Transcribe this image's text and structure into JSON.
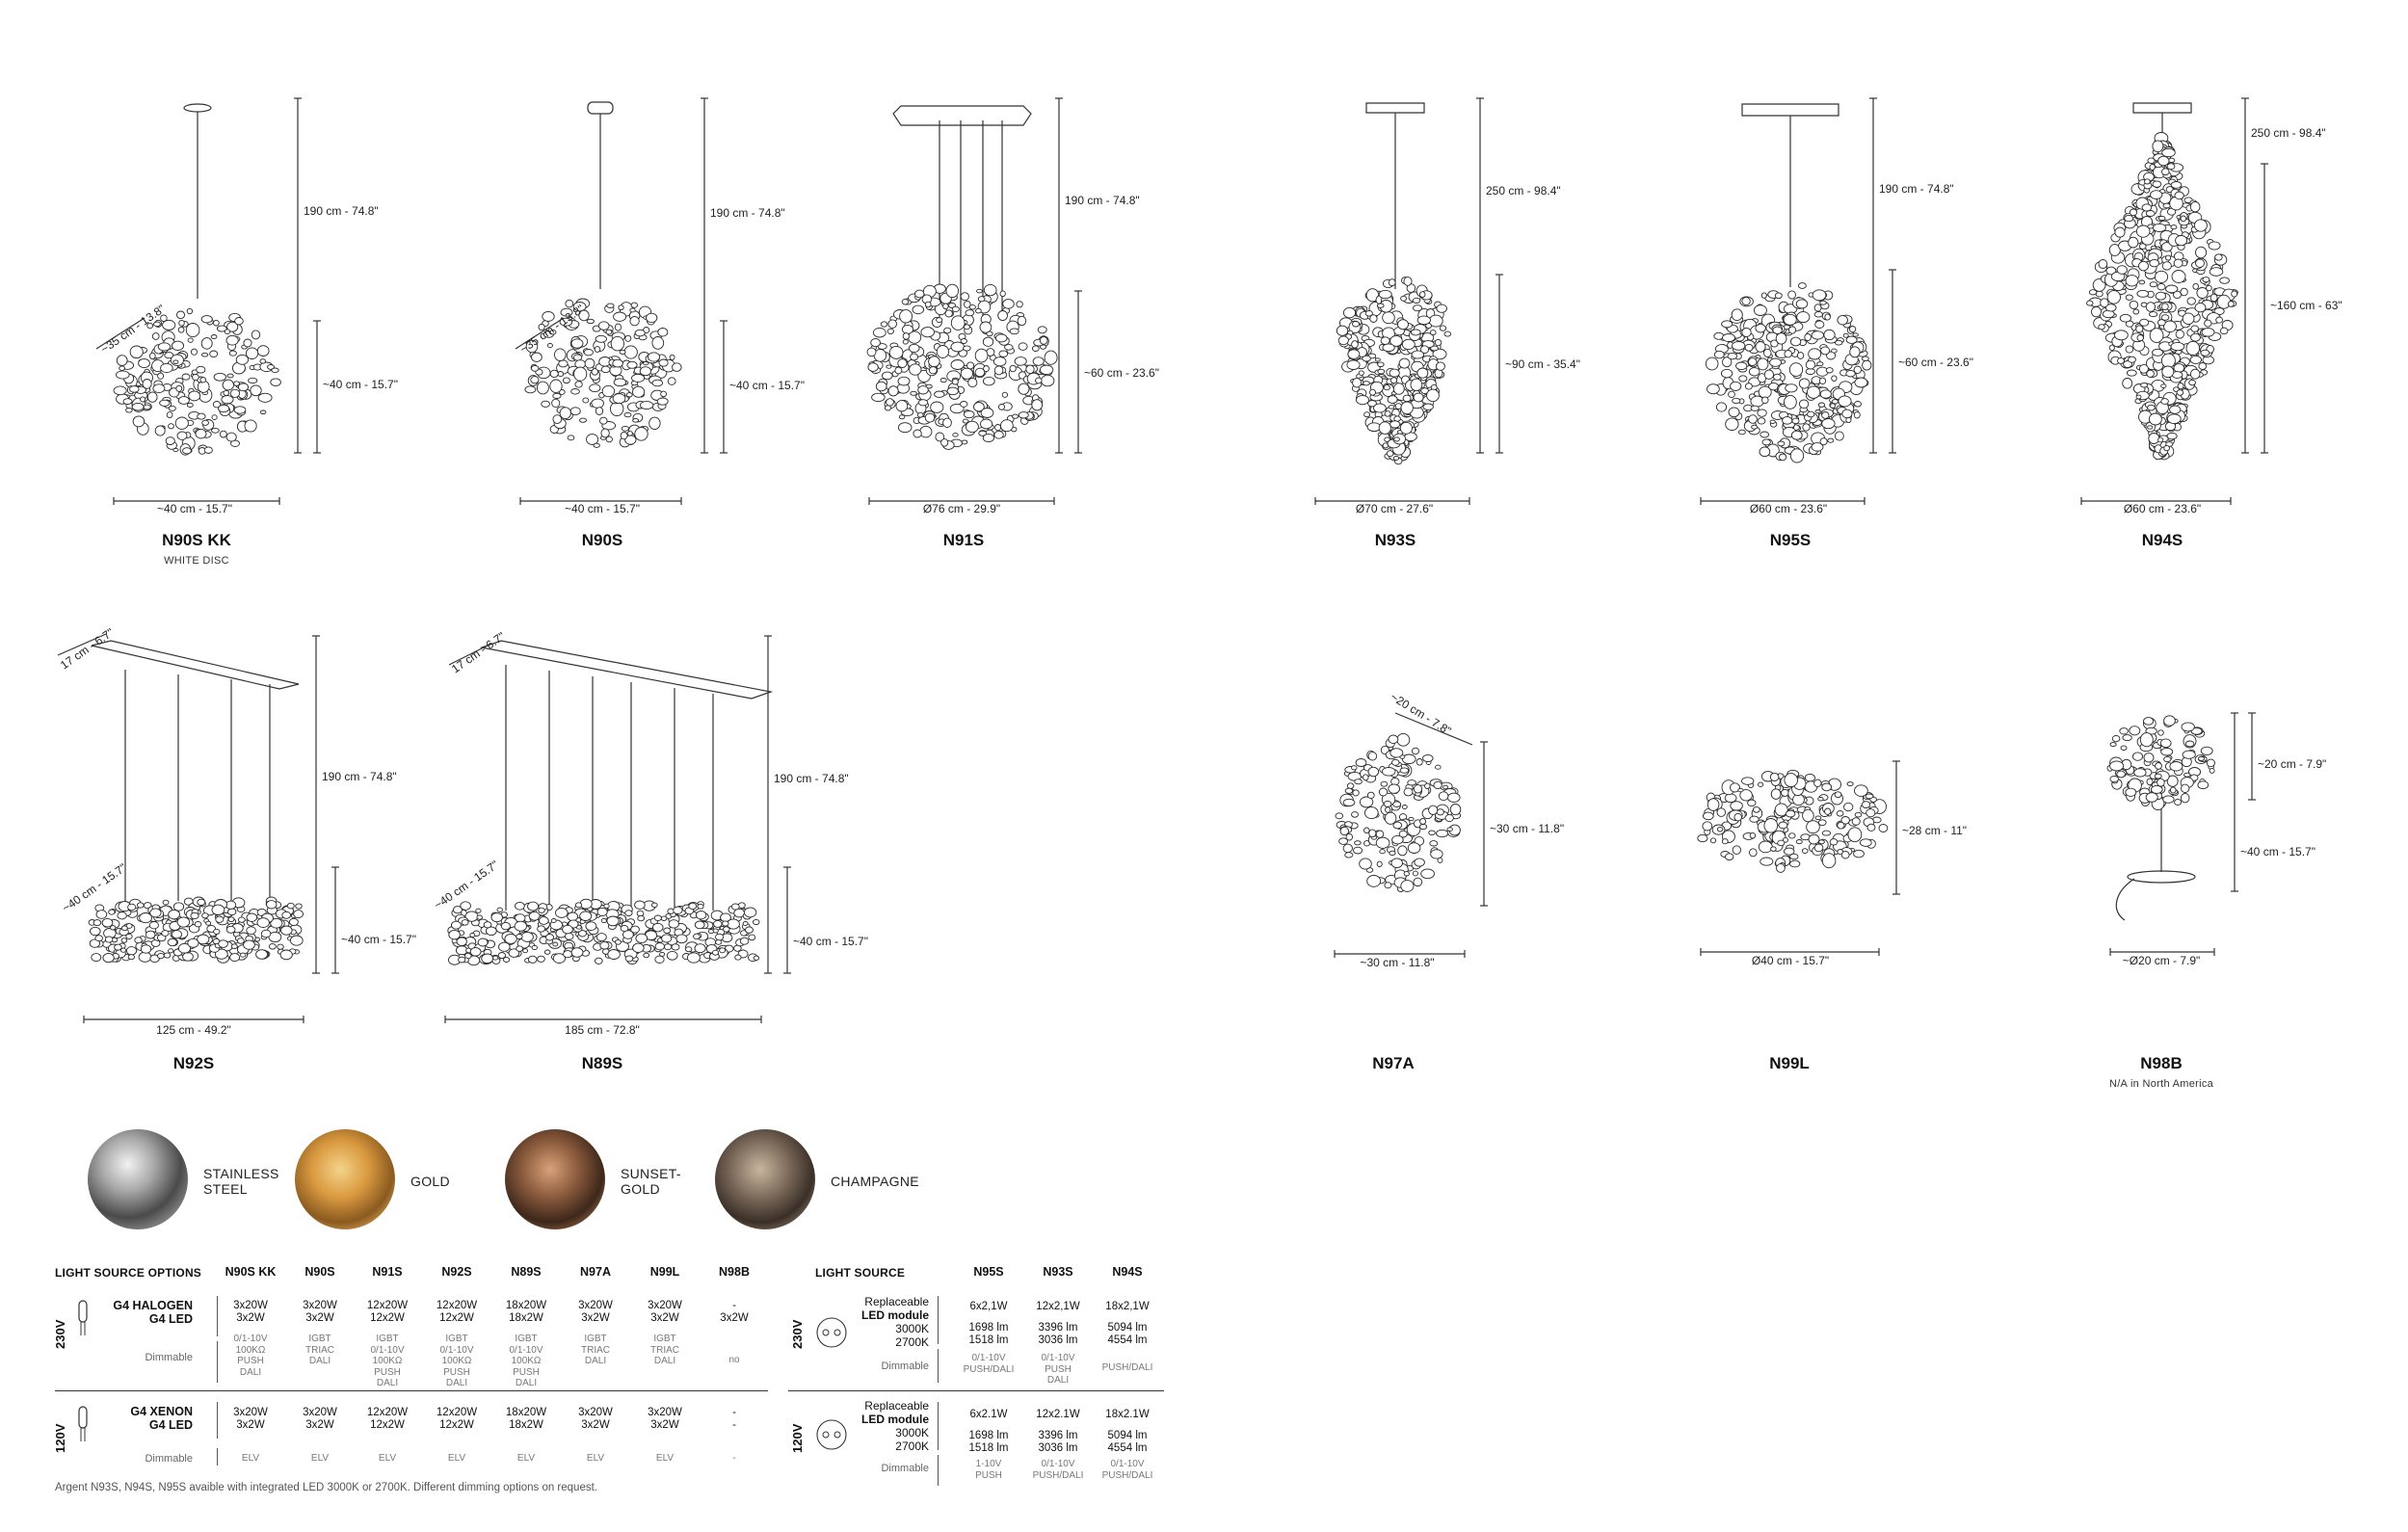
{
  "products": [
    {
      "id": "N90S KK",
      "sub": "WHITE DISC"
    },
    {
      "id": "N90S"
    },
    {
      "id": "N91S"
    },
    {
      "id": "N93S"
    },
    {
      "id": "N95S"
    },
    {
      "id": "N94S"
    },
    {
      "id": "N92S"
    },
    {
      "id": "N89S"
    },
    {
      "id": "N97A"
    },
    {
      "id": "N99L"
    },
    {
      "id": "N98B",
      "sub": "N/A in North America"
    }
  ],
  "dims": {
    "n90skk": {
      "h": "190 cm - 74.8\"",
      "h2": "~40 cm - 15.7\"",
      "w": "~40 cm - 15.7\"",
      "d": "~35 cm - 13.8\""
    },
    "n90s": {
      "h": "190 cm - 74.8\"",
      "h2": "~40 cm - 15.7\"",
      "w": "~40 cm - 15.7\"",
      "d": "~35 cm - 13.8\""
    },
    "n91s": {
      "h": "190 cm - 74.8\"",
      "h2": "~60 cm - 23.6\"",
      "w": "Ø76 cm - 29.9\""
    },
    "n93s": {
      "h": "250 cm - 98.4\"",
      "h2": "~90 cm - 35.4\"",
      "w": "Ø70 cm - 27.6\""
    },
    "n95s": {
      "h": "190 cm - 74.8\"",
      "h2": "~60 cm - 23.6\"",
      "w": "Ø60 cm - 23.6\""
    },
    "n94s": {
      "h": "250 cm - 98.4\"",
      "h2": "~160 cm - 63\"",
      "w": "Ø60 cm - 23.6\""
    },
    "n92s": {
      "h": "190 cm - 74.8\"",
      "h2": "~40 cm - 15.7\"",
      "w": "125 cm - 49.2\"",
      "d": "~40 cm - 15.7\"",
      "d2": "17 cm - 6.7\""
    },
    "n89s": {
      "h": "190 cm - 74.8\"",
      "h2": "~40 cm - 15.7\"",
      "w": "185 cm - 72.8\"",
      "d": "~40 cm - 15.7\"",
      "d2": "17 cm - 6.7\""
    },
    "n97a": {
      "h": "~30 cm - 11.8\"",
      "w": "~30 cm - 11.8\"",
      "d": "~20 cm - 7.8\""
    },
    "n99l": {
      "h": "~28 cm - 11\"",
      "w": "Ø40 cm - 15.7\""
    },
    "n98b": {
      "h": "~20 cm - 7.9\"",
      "h2": "~40 cm - 15.7\"",
      "w": "~Ø20 cm - 7.9\""
    }
  },
  "finishes": [
    {
      "label1": "STAINLESS",
      "label2": "STEEL",
      "color": "#8a8a8a"
    },
    {
      "label1": "GOLD",
      "label2": "",
      "color": "#c98a3a"
    },
    {
      "label1": "SUNSET-",
      "label2": "GOLD",
      "color": "#6e4a33"
    },
    {
      "label1": "CHAMPAGNE",
      "label2": "",
      "color": "#5a4a3e"
    }
  ],
  "table1": {
    "title": "LIGHT SOURCE OPTIONS",
    "columns": [
      "N90S KK",
      "N90S",
      "N91S",
      "N92S",
      "N89S",
      "N97A",
      "N99L",
      "N98B"
    ],
    "v230": "230V",
    "v120": "120V",
    "row230_label1": "G4 HALOGEN",
    "row230_label2": "G4 LED",
    "row230_dim": "Dimmable",
    "row230_values": [
      [
        "3x20W",
        "3x2W"
      ],
      [
        "3x20W",
        "3x2W"
      ],
      [
        "12x20W",
        "12x2W"
      ],
      [
        "12x20W",
        "12x2W"
      ],
      [
        "18x20W",
        "18x2W"
      ],
      [
        "3x20W",
        "3x2W"
      ],
      [
        "3x20W",
        "3x2W"
      ],
      [
        "-",
        "3x2W"
      ]
    ],
    "row230_dimming": [
      [
        "0/1-10V",
        "100KΩ",
        "PUSH",
        "DALI"
      ],
      [
        "IGBT",
        "TRIAC",
        "DALI"
      ],
      [
        "IGBT",
        "0/1-10V",
        "100KΩ",
        "PUSH",
        "DALI"
      ],
      [
        "IGBT",
        "0/1-10V",
        "100KΩ",
        "PUSH",
        "DALI"
      ],
      [
        "IGBT",
        "0/1-10V",
        "100KΩ",
        "PUSH",
        "DALI"
      ],
      [
        "IGBT",
        "TRIAC",
        "DALI"
      ],
      [
        "IGBT",
        "TRIAC",
        "DALI"
      ],
      [
        "no"
      ]
    ],
    "row120_label1": "G4 XENON",
    "row120_label2": "G4 LED",
    "row120_dim": "Dimmable",
    "row120_values": [
      [
        "3x20W",
        "3x2W"
      ],
      [
        "3x20W",
        "3x2W"
      ],
      [
        "12x20W",
        "12x2W"
      ],
      [
        "12x20W",
        "12x2W"
      ],
      [
        "18x20W",
        "18x2W"
      ],
      [
        "3x20W",
        "3x2W"
      ],
      [
        "3x20W",
        "3x2W"
      ],
      [
        "-",
        "-"
      ]
    ],
    "row120_dimming": [
      "ELV",
      "ELV",
      "ELV",
      "ELV",
      "ELV",
      "ELV",
      "ELV",
      "-"
    ]
  },
  "table2": {
    "title": "LIGHT SOURCE",
    "columns": [
      "N95S",
      "N93S",
      "N94S"
    ],
    "v230": "230V",
    "v120": "120V",
    "mod_l1": "Replaceable",
    "mod_l2": "LED module",
    "mod_l3": "3000K",
    "mod_l4": "2700K",
    "dim": "Dimmable",
    "row230_power": [
      "6x2,1W",
      "12x2,1W",
      "18x2,1W"
    ],
    "row230_lm": [
      [
        "1698 lm",
        "1518 lm"
      ],
      [
        "3396 lm",
        "3036 lm"
      ],
      [
        "5094 lm",
        "4554 lm"
      ]
    ],
    "row230_dimming": [
      [
        "0/1-10V",
        "PUSH/DALI"
      ],
      [
        "0/1-10V",
        "PUSH",
        "DALI"
      ],
      [
        "PUSH/DALI"
      ]
    ],
    "row120_power": [
      "6x2.1W",
      "12x2.1W",
      "18x2.1W"
    ],
    "row120_lm": [
      [
        "1698 lm",
        "1518 lm"
      ],
      [
        "3396 lm",
        "3036 lm"
      ],
      [
        "5094 lm",
        "4554 lm"
      ]
    ],
    "row120_dimming": [
      [
        "1-10V",
        "PUSH"
      ],
      [
        "0/1-10V",
        "PUSH/DALI"
      ],
      [
        "0/1-10V",
        "PUSH/DALI"
      ]
    ]
  },
  "footnote": "Argent N93S, N94S, N95S avaible with integrated LED 3000K or 2700K. Different dimming options on request."
}
